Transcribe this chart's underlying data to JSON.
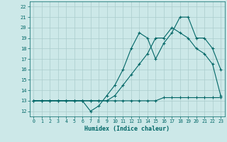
{
  "xlabel": "Humidex (Indice chaleur)",
  "bg_color": "#cce8e8",
  "grid_color": "#aacccc",
  "line_color": "#006666",
  "xlim": [
    -0.5,
    23.5
  ],
  "ylim": [
    11.5,
    22.5
  ],
  "xticks": [
    0,
    1,
    2,
    3,
    4,
    5,
    6,
    7,
    8,
    9,
    10,
    11,
    12,
    13,
    14,
    15,
    16,
    17,
    18,
    19,
    20,
    21,
    22,
    23
  ],
  "yticks": [
    12,
    13,
    14,
    15,
    16,
    17,
    18,
    19,
    20,
    21,
    22
  ],
  "line1_x": [
    0,
    1,
    2,
    3,
    4,
    5,
    6,
    7,
    8,
    9,
    10,
    11,
    12,
    13,
    14,
    15,
    16,
    17,
    18,
    19,
    20,
    21,
    22,
    23
  ],
  "line1_y": [
    13,
    13,
    13,
    13,
    13,
    13,
    13,
    13,
    13,
    13,
    13,
    13,
    13,
    13,
    13,
    13,
    13.3,
    13.3,
    13.3,
    13.3,
    13.3,
    13.3,
    13.3,
    13.3
  ],
  "line2_x": [
    0,
    1,
    2,
    3,
    4,
    5,
    6,
    7,
    8,
    9,
    10,
    11,
    12,
    13,
    14,
    15,
    16,
    17,
    18,
    19,
    20,
    21,
    22,
    23
  ],
  "line2_y": [
    13,
    13,
    13,
    13,
    13,
    13,
    13,
    12,
    12.5,
    13.5,
    14.5,
    16,
    18,
    19.5,
    19,
    17,
    18.5,
    19.5,
    21,
    21,
    19,
    19,
    18,
    16
  ],
  "line3_x": [
    0,
    1,
    2,
    3,
    4,
    5,
    6,
    7,
    8,
    9,
    10,
    11,
    12,
    13,
    14,
    15,
    16,
    17,
    18,
    19,
    20,
    21,
    22,
    23
  ],
  "line3_y": [
    13,
    13,
    13,
    13,
    13,
    13,
    13,
    13,
    13,
    13,
    13.5,
    14.5,
    15.5,
    16.5,
    17.5,
    19,
    19,
    20,
    19.5,
    19,
    18,
    17.5,
    16.5,
    13.5
  ]
}
